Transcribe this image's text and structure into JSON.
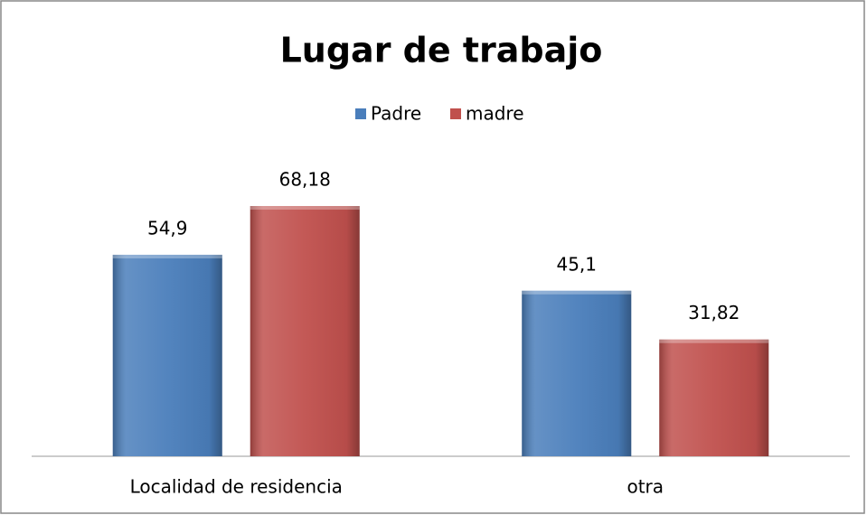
{
  "chart_data": {
    "type": "bar",
    "title": "Lugar de trabajo",
    "categories": [
      "Localidad de residencia",
      "otra"
    ],
    "series": [
      {
        "name": "Padre",
        "color": "#4a7ebb",
        "values": [
          54.9,
          45.1
        ],
        "value_labels": [
          "54,9",
          "45,1"
        ]
      },
      {
        "name": "madre",
        "color": "#c0504d",
        "values": [
          68.18,
          31.82
        ],
        "value_labels": [
          "68,18",
          "31,82"
        ]
      }
    ],
    "ylim": [
      0,
      80
    ],
    "legend": "top"
  }
}
